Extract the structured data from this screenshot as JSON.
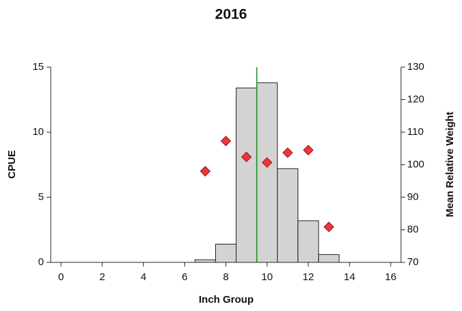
{
  "chart_data": {
    "type": "histogram",
    "title": "2016",
    "xlabel": "Inch Group",
    "ylabel": "CPUE",
    "y2label": "Mean Relative Weight",
    "bins": [
      6.5,
      7.5,
      8.5,
      9.5,
      10.5,
      11.5,
      12.5,
      13.5
    ],
    "values": [
      0.2,
      1.4,
      13.4,
      13.8,
      7.2,
      3.2,
      0.6
    ],
    "color": "#d3d3d3",
    "overlay": {
      "type": "scatter",
      "axis": "y2",
      "color": "#e8383d",
      "x": [
        7,
        8,
        9,
        10,
        11,
        12,
        13
      ],
      "values": [
        98,
        107.3,
        102.4,
        100.7,
        103.7,
        104.5,
        80.9
      ]
    },
    "vline": 9.5,
    "vline_color": "#1a8a1a",
    "xlim": [
      -0.5,
      16.5
    ],
    "xticks": [
      0,
      2,
      4,
      6,
      8,
      10,
      12,
      14,
      16
    ],
    "ylim": [
      0,
      15
    ],
    "yticks": [
      0,
      5,
      10,
      15
    ],
    "y2lim": [
      70,
      130
    ],
    "y2ticks": [
      70,
      80,
      90,
      100,
      110,
      120,
      130
    ]
  }
}
